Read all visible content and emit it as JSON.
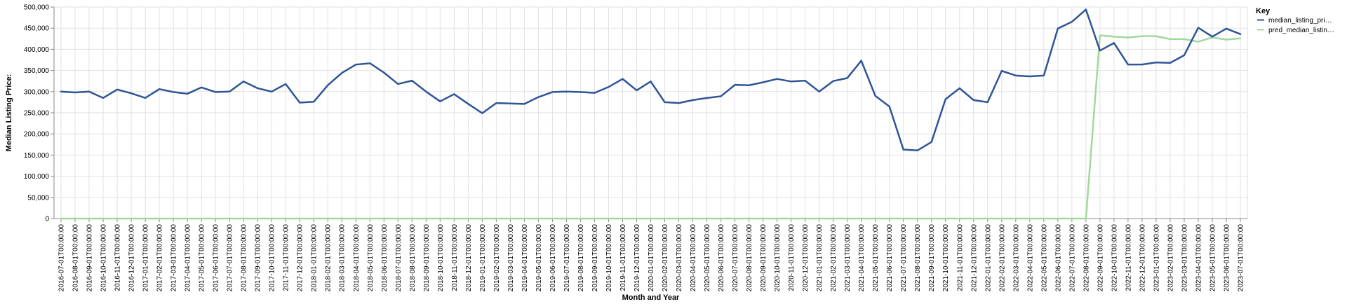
{
  "chart_data": {
    "type": "line",
    "xlabel": "Month and Year",
    "ylabel": "Median Listing Price:",
    "ylim": [
      0,
      500000
    ],
    "yticks": [
      "0",
      "50,000",
      "100,000",
      "150,000",
      "200,000",
      "250,000",
      "300,000",
      "350,000",
      "400,000",
      "450,000",
      "500,000"
    ],
    "grid": true,
    "legend": {
      "title": "Key",
      "placement": "right"
    },
    "categories": [
      "2016-07-01T00:00:00",
      "2016-08-01T00:00:00",
      "2016-09-01T00:00:00",
      "2016-10-01T00:00:00",
      "2016-11-01T00:00:00",
      "2016-12-01T00:00:00",
      "2017-01-01T00:00:00",
      "2017-02-01T00:00:00",
      "2017-03-01T00:00:00",
      "2017-04-01T00:00:00",
      "2017-05-01T00:00:00",
      "2017-06-01T00:00:00",
      "2017-07-01T00:00:00",
      "2017-08-01T00:00:00",
      "2017-09-01T00:00:00",
      "2017-10-01T00:00:00",
      "2017-11-01T00:00:00",
      "2017-12-01T00:00:00",
      "2018-01-01T00:00:00",
      "2018-02-01T00:00:00",
      "2018-03-01T00:00:00",
      "2018-04-01T00:00:00",
      "2018-05-01T00:00:00",
      "2018-06-01T00:00:00",
      "2018-07-01T00:00:00",
      "2018-08-01T00:00:00",
      "2018-09-01T00:00:00",
      "2018-10-01T00:00:00",
      "2018-11-01T00:00:00",
      "2018-12-01T00:00:00",
      "2019-01-01T00:00:00",
      "2019-02-01T00:00:00",
      "2019-03-01T00:00:00",
      "2019-04-01T00:00:00",
      "2019-05-01T00:00:00",
      "2019-06-01T00:00:00",
      "2019-07-01T00:00:00",
      "2019-08-01T00:00:00",
      "2019-09-01T00:00:00",
      "2019-10-01T00:00:00",
      "2019-11-01T00:00:00",
      "2019-12-01T00:00:00",
      "2020-01-01T00:00:00",
      "2020-02-01T00:00:00",
      "2020-03-01T00:00:00",
      "2020-04-01T00:00:00",
      "2020-05-01T00:00:00",
      "2020-06-01T00:00:00",
      "2020-07-01T00:00:00",
      "2020-08-01T00:00:00",
      "2020-09-01T00:00:00",
      "2020-10-01T00:00:00",
      "2020-11-01T00:00:00",
      "2020-12-01T00:00:00",
      "2021-01-01T00:00:00",
      "2021-02-01T00:00:00",
      "2021-03-01T00:00:00",
      "2021-04-01T00:00:00",
      "2021-05-01T00:00:00",
      "2021-06-01T00:00:00",
      "2021-07-01T00:00:00",
      "2021-08-01T00:00:00",
      "2021-09-01T00:00:00",
      "2021-10-01T00:00:00",
      "2021-11-01T00:00:00",
      "2021-12-01T00:00:00",
      "2022-01-01T00:00:00",
      "2022-02-01T00:00:00",
      "2022-03-01T00:00:00",
      "2022-04-01T00:00:00",
      "2022-05-01T00:00:00",
      "2022-06-01T00:00:00",
      "2022-07-01T00:00:00",
      "2022-08-01T00:00:00",
      "2022-09-01T00:00:00",
      "2022-10-01T00:00:00",
      "2022-11-01T00:00:00",
      "2022-12-01T00:00:00",
      "2023-01-01T00:00:00",
      "2023-02-01T00:00:00",
      "2023-03-01T00:00:00",
      "2023-04-01T00:00:00",
      "2023-05-01T00:00:00",
      "2023-06-01T00:00:00",
      "2023-07-01T00:00:00"
    ],
    "series": [
      {
        "name": "median_listing_pri…",
        "color": "#2f5597",
        "values": [
          300000,
          298000,
          300000,
          285000,
          305000,
          296000,
          285000,
          306000,
          299000,
          295000,
          310000,
          299000,
          300000,
          324000,
          308000,
          300000,
          318000,
          274000,
          276000,
          315000,
          344000,
          364000,
          367000,
          345000,
          318000,
          326000,
          300000,
          277000,
          294000,
          271000,
          249000,
          273000,
          272000,
          271000,
          287000,
          299000,
          300000,
          299000,
          297000,
          311000,
          330000,
          303000,
          324000,
          275000,
          273000,
          280000,
          285000,
          289000,
          316000,
          315000,
          322000,
          330000,
          324000,
          326000,
          300000,
          325000,
          332000,
          373000,
          290000,
          265000,
          163000,
          161000,
          181000,
          282000,
          308000,
          280000,
          275000,
          349000,
          338000,
          336000,
          338000,
          449000,
          465000,
          494000,
          397000,
          415000,
          364000,
          364000,
          369000,
          368000,
          386000,
          451000,
          430000,
          449000,
          436000
        ]
      },
      {
        "name": "pred_median_listin…",
        "color": "#a1d99b",
        "values": [
          0,
          0,
          0,
          0,
          0,
          0,
          0,
          0,
          0,
          0,
          0,
          0,
          0,
          0,
          0,
          0,
          0,
          0,
          0,
          0,
          0,
          0,
          0,
          0,
          0,
          0,
          0,
          0,
          0,
          0,
          0,
          0,
          0,
          0,
          0,
          0,
          0,
          0,
          0,
          0,
          0,
          0,
          0,
          0,
          0,
          0,
          0,
          0,
          0,
          0,
          0,
          0,
          0,
          0,
          0,
          0,
          0,
          0,
          0,
          0,
          0,
          0,
          0,
          0,
          0,
          0,
          0,
          0,
          0,
          0,
          0,
          0,
          0,
          0,
          433000,
          430000,
          428000,
          431000,
          431000,
          424000,
          424000,
          418000,
          428000,
          423000,
          426000
        ]
      }
    ]
  }
}
